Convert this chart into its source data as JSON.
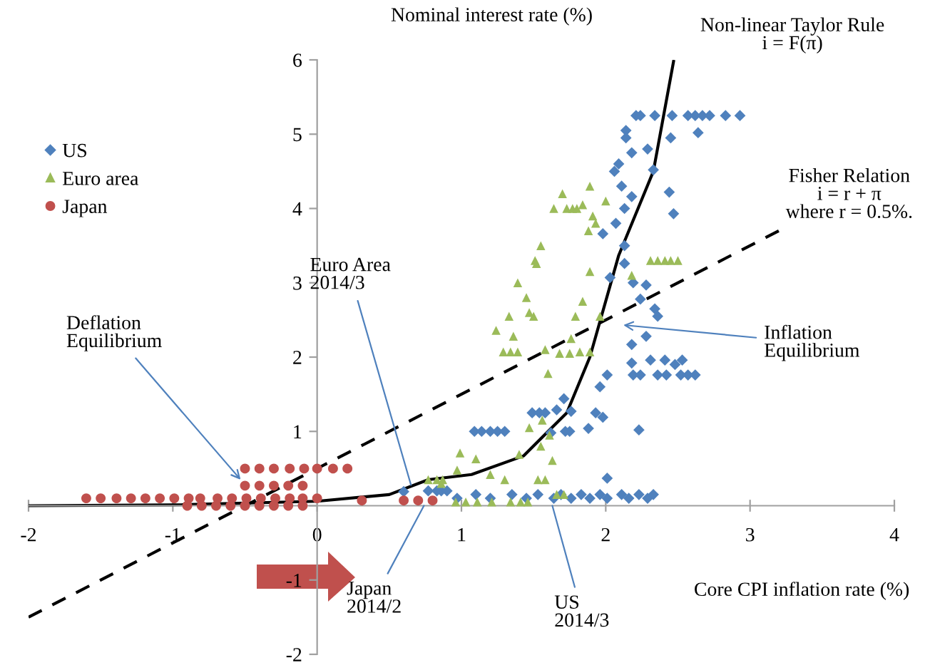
{
  "chart_data": {
    "type": "scatter",
    "xlabel": "Core CPI inflation rate (%)",
    "ylabel": "Nominal interest rate (%)",
    "xlim": [
      -2,
      4
    ],
    "ylim": [
      -2,
      6
    ],
    "xticks": [
      -2,
      -1,
      0,
      1,
      2,
      3,
      4
    ],
    "yticks": [
      -2,
      -1,
      {
        "value": 0,
        "label": null
      },
      1,
      2,
      3,
      4,
      5,
      6
    ],
    "legend": "top left",
    "grid": false,
    "series": [
      {
        "name": "US",
        "color": "#4f81bd",
        "marker": "diamond",
        "x": [
          2.21,
          2.24,
          2.34,
          2.46,
          2.57,
          2.62,
          2.67,
          2.72,
          2.83,
          2.93,
          2.14,
          2.14,
          2.45,
          2.64,
          2.18,
          2.29,
          2.09,
          2.06,
          2.33,
          2.11,
          2.18,
          2.44,
          2.13,
          2.47,
          2.07,
          1.98,
          2.13,
          2.13,
          2.03,
          2.19,
          2.28,
          2.24,
          2.34,
          2.36,
          2.18,
          2.28,
          2.18,
          2.31,
          2.41,
          2.48,
          2.53,
          2.19,
          2.24,
          2.36,
          2.42,
          2.52,
          2.57,
          2.62,
          2.01,
          1.96,
          1.93,
          1.98,
          1.71,
          1.66,
          1.49,
          1.54,
          1.58,
          1.76,
          1.88,
          1.75,
          1.72,
          2.23,
          1.09,
          1.14,
          1.2,
          1.25,
          1.3,
          1.62,
          2.01,
          0.6,
          0.77,
          0.83,
          0.86,
          0.9,
          0.97,
          1.1,
          1.2,
          1.35,
          1.45,
          1.53,
          1.64,
          1.69,
          1.76,
          1.83,
          1.89,
          1.96,
          2.01,
          2.11,
          2.16,
          2.23,
          2.29,
          2.33
        ],
        "values": [
          5.25,
          5.25,
          5.25,
          5.25,
          5.25,
          5.25,
          5.25,
          5.25,
          5.25,
          5.25,
          5.05,
          4.95,
          4.95,
          5.02,
          4.75,
          4.8,
          4.6,
          4.5,
          4.52,
          4.3,
          4.16,
          4.22,
          4.0,
          3.93,
          3.8,
          3.66,
          3.5,
          3.26,
          3.07,
          3.0,
          2.97,
          2.78,
          2.65,
          2.55,
          2.17,
          2.28,
          1.92,
          1.96,
          1.96,
          1.9,
          1.96,
          1.76,
          1.76,
          1.76,
          1.76,
          1.76,
          1.76,
          1.76,
          1.76,
          1.6,
          1.25,
          1.19,
          1.44,
          1.29,
          1.25,
          1.25,
          1.25,
          1.27,
          1.04,
          1.0,
          1.0,
          1.02,
          1.0,
          1.0,
          1.0,
          1.0,
          1.0,
          0.98,
          0.37,
          0.19,
          0.2,
          0.2,
          0.2,
          0.2,
          0.1,
          0.15,
          0.1,
          0.15,
          0.1,
          0.15,
          0.1,
          0.15,
          0.1,
          0.15,
          0.1,
          0.15,
          0.1,
          0.15,
          0.1,
          0.15,
          0.1,
          0.15
        ]
      },
      {
        "name": "Euro area",
        "color": "#9bbb59",
        "marker": "triangle",
        "x": [
          1.7,
          1.64,
          1.73,
          1.77,
          1.8,
          1.84,
          1.89,
          2.0,
          1.91,
          1.93,
          1.88,
          1.55,
          1.51,
          1.52,
          2.31,
          2.36,
          2.41,
          2.45,
          2.5,
          1.39,
          1.89,
          2.18,
          1.45,
          1.47,
          1.5,
          1.84,
          1.79,
          1.33,
          1.24,
          1.96,
          1.36,
          1.29,
          1.34,
          1.39,
          1.58,
          1.68,
          1.75,
          1.76,
          1.82,
          1.89,
          1.6,
          1.47,
          1.56,
          1.61,
          1.55,
          1.63,
          1.4,
          1.3,
          1.2,
          1.1,
          0.97,
          0.99,
          0.87,
          1.53,
          1.58,
          1.66,
          1.71,
          0.96,
          1.03,
          1.11,
          1.21,
          1.34,
          1.41,
          1.46,
          0.77,
          0.83,
          0.86
        ],
        "values": [
          4.2,
          4.0,
          4.0,
          4.0,
          4.0,
          4.05,
          4.3,
          4.1,
          3.9,
          3.8,
          3.7,
          3.5,
          3.3,
          3.26,
          3.3,
          3.3,
          3.3,
          3.3,
          3.3,
          3.0,
          3.15,
          3.1,
          2.8,
          2.6,
          2.55,
          2.75,
          2.55,
          2.55,
          2.36,
          2.55,
          2.28,
          2.07,
          2.07,
          2.07,
          2.1,
          2.05,
          2.05,
          2.25,
          2.07,
          2.07,
          1.78,
          1.05,
          1.15,
          0.95,
          0.8,
          0.61,
          0.69,
          0.35,
          0.42,
          0.63,
          0.48,
          0.71,
          0.35,
          0.35,
          0.35,
          0.15,
          0.15,
          0.05,
          0.05,
          0.05,
          0.05,
          0.05,
          0.05,
          0.05,
          0.35,
          0.35,
          0.3
        ]
      },
      {
        "name": "Japan",
        "color": "#c0504d",
        "marker": "circle",
        "x": [
          -1.6,
          -1.5,
          -1.39,
          -1.29,
          -1.19,
          -1.09,
          -0.99,
          -0.89,
          -0.81,
          -0.69,
          -0.59,
          -0.49,
          -0.39,
          -0.29,
          -0.19,
          -0.1,
          0.0,
          -0.9,
          -0.8,
          -0.7,
          -0.6,
          -0.5,
          -0.4,
          -0.3,
          -0.2,
          -0.1,
          -0.5,
          -0.4,
          -0.3,
          -0.2,
          -0.1,
          -0.5,
          -0.4,
          -0.3,
          -0.19,
          -0.09,
          0.0,
          0.11,
          0.21,
          0.31,
          0.6,
          0.7,
          0.8
        ],
        "values": [
          0.1,
          0.1,
          0.1,
          0.1,
          0.1,
          0.1,
          0.1,
          0.1,
          0.1,
          0.1,
          0.1,
          0.1,
          0.1,
          0.1,
          0.1,
          0.1,
          0.1,
          0.0,
          0.0,
          0.0,
          0.0,
          0.0,
          0.0,
          0.0,
          0.0,
          0.0,
          0.27,
          0.27,
          0.27,
          0.27,
          0.27,
          0.5,
          0.5,
          0.5,
          0.5,
          0.5,
          0.5,
          0.5,
          0.5,
          0.07,
          0.07,
          0.07,
          0.07
        ]
      },
      {
        "type": "line",
        "color": "#000000",
        "line_style": "solid",
        "marker": "none",
        "x": [
          -2,
          -1,
          0,
          0.5,
          0.77,
          1.07,
          1.43,
          1.73,
          1.89,
          2.09,
          2.33,
          2.47
        ],
        "values": [
          0.0,
          0.01,
          0.06,
          0.15,
          0.35,
          0.42,
          0.67,
          1.25,
          2.0,
          3.37,
          4.5,
          5.98
        ]
      },
      {
        "type": "line",
        "color": "#000000",
        "line_style": "dashed",
        "marker": "none",
        "x": [
          -2,
          3.2
        ],
        "values": [
          -1.5,
          3.7
        ]
      }
    ],
    "annotations": [
      {
        "text": "Non-linear Taylor Rule\ni = F(π)",
        "x": 2.47,
        "y": 5.98
      },
      "Fisher Relation\ni = r + π\nwhere r = 0.5%.",
      "Inflation\nEquilibrium",
      {
        "text": "Deflation\nEquilibrium",
        "x": -0.53,
        "y": 0.35
      },
      {
        "text": "Euro Area\n2014/3",
        "x": 0.65,
        "y": 0.28
      },
      {
        "text": "Japan\n2014/2",
        "x": 0.74,
        "y": 0.0
      },
      {
        "text": "US\n2014/3",
        "x": 1.63,
        "y": 0.0
      }
    ]
  }
}
